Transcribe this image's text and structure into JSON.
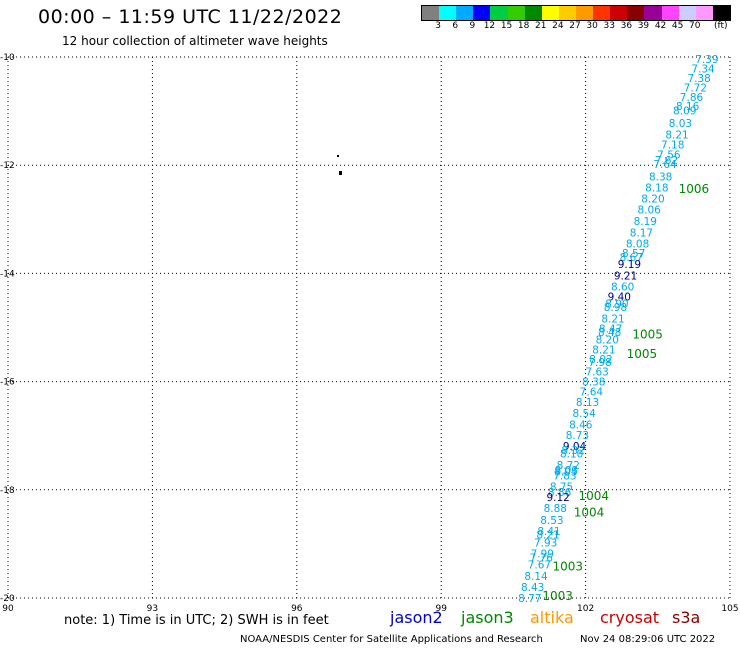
{
  "title": "00:00 – 11:59 UTC 11/22/2022",
  "subtitle": "12 hour collection of altimeter wave heights",
  "scale": {
    "colors": [
      "#808080",
      "#00ffff",
      "#00aaff",
      "#0000ff",
      "#00cc44",
      "#33cc00",
      "#008800",
      "#ffff00",
      "#ffcc00",
      "#ff9900",
      "#ff3300",
      "#cc0000",
      "#880000",
      "#990099",
      "#ff44ff",
      "#ccccff",
      "#ff99ff",
      "#000000"
    ],
    "labels": [
      "3",
      "6",
      "9",
      "12",
      "15",
      "18",
      "21",
      "24",
      "27",
      "30",
      "33",
      "36",
      "39",
      "42",
      "45",
      "70"
    ],
    "units": "(ft)"
  },
  "axes": {
    "lon_ticks": [
      "90",
      "93",
      "96",
      "99",
      "102",
      "105"
    ],
    "lat_ticks": [
      "-10",
      "-12",
      "-14",
      "-16",
      "-18",
      "-20"
    ]
  },
  "colors": {
    "jason3": "#008800",
    "saral": "#00aaee",
    "jason2": "#000088",
    "altika": "#ff9900",
    "cryosat": "#cc0000",
    "s3a": "#cc0000"
  },
  "track": [
    {
      "v": "7.39",
      "c": "saral",
      "lon": 104.52,
      "lat": -10.04
    },
    {
      "v": "7.34",
      "c": "saral",
      "lon": 104.44,
      "lat": -10.21
    },
    {
      "v": "7.38",
      "c": "saral",
      "lon": 104.36,
      "lat": -10.39
    },
    {
      "v": "7.72",
      "c": "saral",
      "lon": 104.28,
      "lat": -10.56
    },
    {
      "v": "7.86",
      "c": "saral",
      "lon": 104.2,
      "lat": -10.74
    },
    {
      "v": "8.16",
      "c": "saral",
      "lon": 104.12,
      "lat": -10.91
    },
    {
      "v": "8.09",
      "c": "saral",
      "lon": 104.06,
      "lat": -10.99
    },
    {
      "v": "8.03",
      "c": "saral",
      "lon": 103.97,
      "lat": -11.22
    },
    {
      "v": "8.21",
      "c": "saral",
      "lon": 103.9,
      "lat": -11.43
    },
    {
      "v": "7.18",
      "c": "saral",
      "lon": 103.81,
      "lat": -11.62
    },
    {
      "v": "7.56",
      "c": "saral",
      "lon": 103.73,
      "lat": -11.8
    },
    {
      "v": "7.62",
      "c": "saral",
      "lon": 103.68,
      "lat": -11.9
    },
    {
      "v": "7.64",
      "c": "saral",
      "lon": 103.65,
      "lat": -11.98
    },
    {
      "v": "8.38",
      "c": "saral",
      "lon": 103.56,
      "lat": -12.21
    },
    {
      "v": "8.18",
      "c": "saral",
      "lon": 103.48,
      "lat": -12.41
    },
    {
      "v": "8.20",
      "c": "saral",
      "lon": 103.4,
      "lat": -12.62
    },
    {
      "v": "8.06",
      "c": "saral",
      "lon": 103.32,
      "lat": -12.82
    },
    {
      "v": "8.19",
      "c": "saral",
      "lon": 103.24,
      "lat": -13.03
    },
    {
      "v": "8.17",
      "c": "saral",
      "lon": 103.16,
      "lat": -13.24
    },
    {
      "v": "8.08",
      "c": "saral",
      "lon": 103.08,
      "lat": -13.45
    },
    {
      "v": "8.57",
      "c": "saral",
      "lon": 103.0,
      "lat": -13.62
    },
    {
      "v": "8.67",
      "c": "saral",
      "lon": 102.95,
      "lat": -13.7
    },
    {
      "v": "9.19",
      "c": "jason2",
      "lon": 102.91,
      "lat": -13.83
    },
    {
      "v": "9.21",
      "c": "jason2",
      "lon": 102.83,
      "lat": -14.04
    },
    {
      "v": "8.60",
      "c": "saral",
      "lon": 102.77,
      "lat": -14.24
    },
    {
      "v": "9.40",
      "c": "jason2",
      "lon": 102.7,
      "lat": -14.43
    },
    {
      "v": "8.90",
      "c": "saral",
      "lon": 102.65,
      "lat": -14.56
    },
    {
      "v": "8.98",
      "c": "saral",
      "lon": 102.62,
      "lat": -14.62
    },
    {
      "v": "8.21",
      "c": "saral",
      "lon": 102.57,
      "lat": -14.83
    },
    {
      "v": "8.47",
      "c": "saral",
      "lon": 102.52,
      "lat": -15.02
    },
    {
      "v": "8.48",
      "c": "saral",
      "lon": 102.5,
      "lat": -15.08
    },
    {
      "v": "8.20",
      "c": "saral",
      "lon": 102.45,
      "lat": -15.22
    },
    {
      "v": "8.21",
      "c": "saral",
      "lon": 102.38,
      "lat": -15.41
    },
    {
      "v": "8.02",
      "c": "saral",
      "lon": 102.32,
      "lat": -15.58
    },
    {
      "v": "7.98",
      "c": "saral",
      "lon": 102.3,
      "lat": -15.64
    },
    {
      "v": "7.63",
      "c": "saral",
      "lon": 102.24,
      "lat": -15.81
    },
    {
      "v": "8.38",
      "c": "saral",
      "lon": 102.17,
      "lat": -16.0
    },
    {
      "v": "7.64",
      "c": "saral",
      "lon": 102.12,
      "lat": -16.18
    },
    {
      "v": "8.13",
      "c": "saral",
      "lon": 102.04,
      "lat": -16.38
    },
    {
      "v": "8.54",
      "c": "saral",
      "lon": 101.97,
      "lat": -16.58
    },
    {
      "v": "8.46",
      "c": "saral",
      "lon": 101.9,
      "lat": -16.79
    },
    {
      "v": "8.73",
      "c": "saral",
      "lon": 101.83,
      "lat": -16.99
    },
    {
      "v": "9.04",
      "c": "jason2",
      "lon": 101.77,
      "lat": -17.19
    },
    {
      "v": "8.32",
      "c": "saral",
      "lon": 101.74,
      "lat": -17.26
    },
    {
      "v": "8.10",
      "c": "saral",
      "lon": 101.71,
      "lat": -17.33
    },
    {
      "v": "8.72",
      "c": "saral",
      "lon": 101.64,
      "lat": -17.54
    },
    {
      "v": "8.03",
      "c": "saral",
      "lon": 101.6,
      "lat": -17.63
    },
    {
      "v": "8.05",
      "c": "saral",
      "lon": 101.59,
      "lat": -17.66
    },
    {
      "v": "7.83",
      "c": "saral",
      "lon": 101.57,
      "lat": -17.74
    },
    {
      "v": "8.75",
      "c": "saral",
      "lon": 101.5,
      "lat": -17.94
    },
    {
      "v": "8.86",
      "c": "saral",
      "lon": 101.46,
      "lat": -18.04
    },
    {
      "v": "9.12",
      "c": "jason2",
      "lon": 101.43,
      "lat": -18.13
    },
    {
      "v": "8.88",
      "c": "saral",
      "lon": 101.37,
      "lat": -18.34
    },
    {
      "v": "8.53",
      "c": "saral",
      "lon": 101.3,
      "lat": -18.56
    },
    {
      "v": "8.41",
      "c": "saral",
      "lon": 101.24,
      "lat": -18.76
    },
    {
      "v": "8.21",
      "c": "saral",
      "lon": 101.22,
      "lat": -18.83
    },
    {
      "v": "7.93",
      "c": "saral",
      "lon": 101.17,
      "lat": -18.97
    },
    {
      "v": "7.99",
      "c": "saral",
      "lon": 101.1,
      "lat": -19.18
    },
    {
      "v": "7.76",
      "c": "saral",
      "lon": 101.08,
      "lat": -19.25
    },
    {
      "v": "7.67",
      "c": "saral",
      "lon": 101.04,
      "lat": -19.38
    },
    {
      "v": "8.14",
      "c": "saral",
      "lon": 100.97,
      "lat": -19.59
    },
    {
      "v": "8.43",
      "c": "saral",
      "lon": 100.9,
      "lat": -19.8
    },
    {
      "v": "8.77",
      "c": "saral",
      "lon": 100.84,
      "lat": -20.0
    }
  ],
  "pressure": [
    {
      "v": "1006",
      "lon": 104.25,
      "lat": -12.44
    },
    {
      "v": "1005",
      "lon": 103.29,
      "lat": -15.13
    },
    {
      "v": "1005",
      "lon": 103.17,
      "lat": -15.49
    },
    {
      "v": "1004",
      "lon": 102.17,
      "lat": -18.11
    },
    {
      "v": "1004",
      "lon": 102.07,
      "lat": -18.42
    },
    {
      "v": "1003",
      "lon": 101.63,
      "lat": -19.42
    },
    {
      "v": "1003",
      "lon": 101.42,
      "lat": -19.96
    }
  ],
  "note": "note: 1) Time is in UTC; 2) SWH is in feet",
  "missions": [
    {
      "name": "jason2",
      "color": "#0000cc"
    },
    {
      "name": "jason3",
      "color": "#008800"
    },
    {
      "name": "altika",
      "color": "#ff9900"
    },
    {
      "name": "cryosat",
      "color": "#cc0000"
    },
    {
      "name": "s3a",
      "color": "#880000"
    }
  ],
  "footer_left": "NOAA/NESDIS Center for Satellite Applications and Research",
  "footer_right": "Nov 24 08:29:06 UTC 2022"
}
